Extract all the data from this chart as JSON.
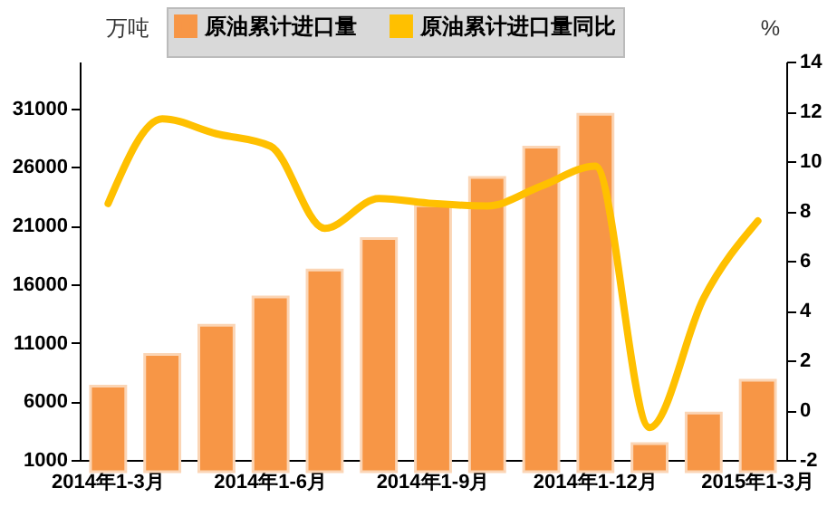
{
  "chart_data": {
    "type": "bar",
    "ylabel": "万吨",
    "y2label": "%",
    "categories": [
      "2014年1-3月",
      null,
      null,
      "2014年1-6月",
      null,
      null,
      "2014年1-9月",
      null,
      null,
      "2014年1-12月",
      null,
      null,
      "2015年1-3月"
    ],
    "series": [
      {
        "name": "原油累计进口量",
        "color": "#f79646",
        "values": [
          7300,
          10000,
          12500,
          14900,
          17200,
          19900,
          22700,
          25100,
          27700,
          30500,
          2400,
          5000,
          7800
        ]
      },
      {
        "name": "原油累计进口量同比",
        "type": "line",
        "axis": "y2",
        "color": "#ffc000",
        "values": [
          8.3,
          11.7,
          11.1,
          10.6,
          7.3,
          8.5,
          8.3,
          8.2,
          9.0,
          9.8,
          -0.7,
          4.5,
          7.6
        ]
      }
    ],
    "ylim": [
      1000,
      35000
    ],
    "yticks": [
      1000,
      6000,
      11000,
      16000,
      21000,
      26000,
      31000
    ],
    "y2lim": [
      -2,
      14
    ],
    "y2ticks": [
      -2,
      0,
      2,
      4,
      6,
      8,
      10,
      12,
      14
    ],
    "grid": false,
    "legend": "top",
    "marker": "none",
    "line_style": "solid"
  }
}
